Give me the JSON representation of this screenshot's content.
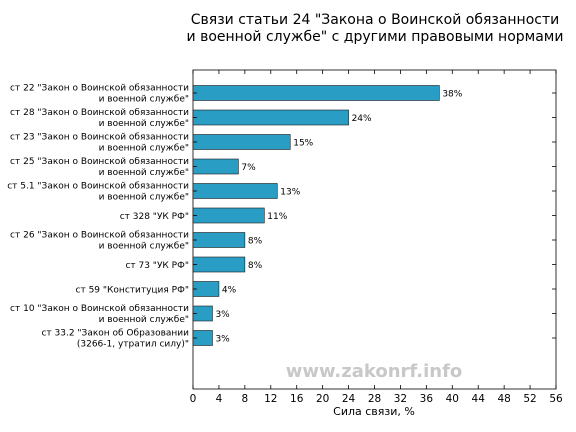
{
  "chart_data": {
    "type": "bar",
    "orientation": "horizontal",
    "title": "Связи статьи 24 \"Закона о Воинской обязанности и военной службе\" с другими правовыми нормами",
    "title_lines": [
      "Связи статьи 24 \"Закона о Воинской обязанности",
      "и военной службе\" с другими правовыми нормами"
    ],
    "xlabel": "Сила связи, %",
    "ylabel": "",
    "xlim": [
      0,
      56
    ],
    "xticks": [
      0,
      4,
      8,
      12,
      16,
      20,
      24,
      28,
      32,
      36,
      40,
      44,
      48,
      52,
      56
    ],
    "grid": false,
    "bar_color": "#2a9dc4",
    "categories": [
      [
        "ст 22 \"Закон о Воинской обязанности",
        "и военной службе\""
      ],
      [
        "ст 28 \"Закон о Воинской обязанности",
        "и военной службе\""
      ],
      [
        "ст 23 \"Закон о Воинской обязанности",
        "и военной службе\""
      ],
      [
        "ст 25 \"Закон о Воинской обязанности",
        "и военной службе\""
      ],
      [
        "ст 5.1 \"Закон о Воинской обязанности",
        "и военной службе\""
      ],
      [
        "ст 328 \"УК РФ\""
      ],
      [
        "ст 26 \"Закон о Воинской обязанности",
        "и военной службе\""
      ],
      [
        "ст 73 \"УК РФ\""
      ],
      [
        "ст 59 \"Конституция РФ\""
      ],
      [
        "ст 10 \"Закон о Воинской обязанности",
        "и военной службе\""
      ],
      [
        "ст 33.2 \"Закон об Образовании",
        "(3266-1, утратил силу)\""
      ]
    ],
    "values": [
      38,
      24,
      15,
      7,
      13,
      11,
      8,
      8,
      4,
      3,
      3
    ],
    "value_labels": [
      "38%",
      "24%",
      "15%",
      "7%",
      "13%",
      "11%",
      "8%",
      "8%",
      "4%",
      "3%",
      "3%"
    ]
  },
  "watermark": "www.zakonrf.info"
}
